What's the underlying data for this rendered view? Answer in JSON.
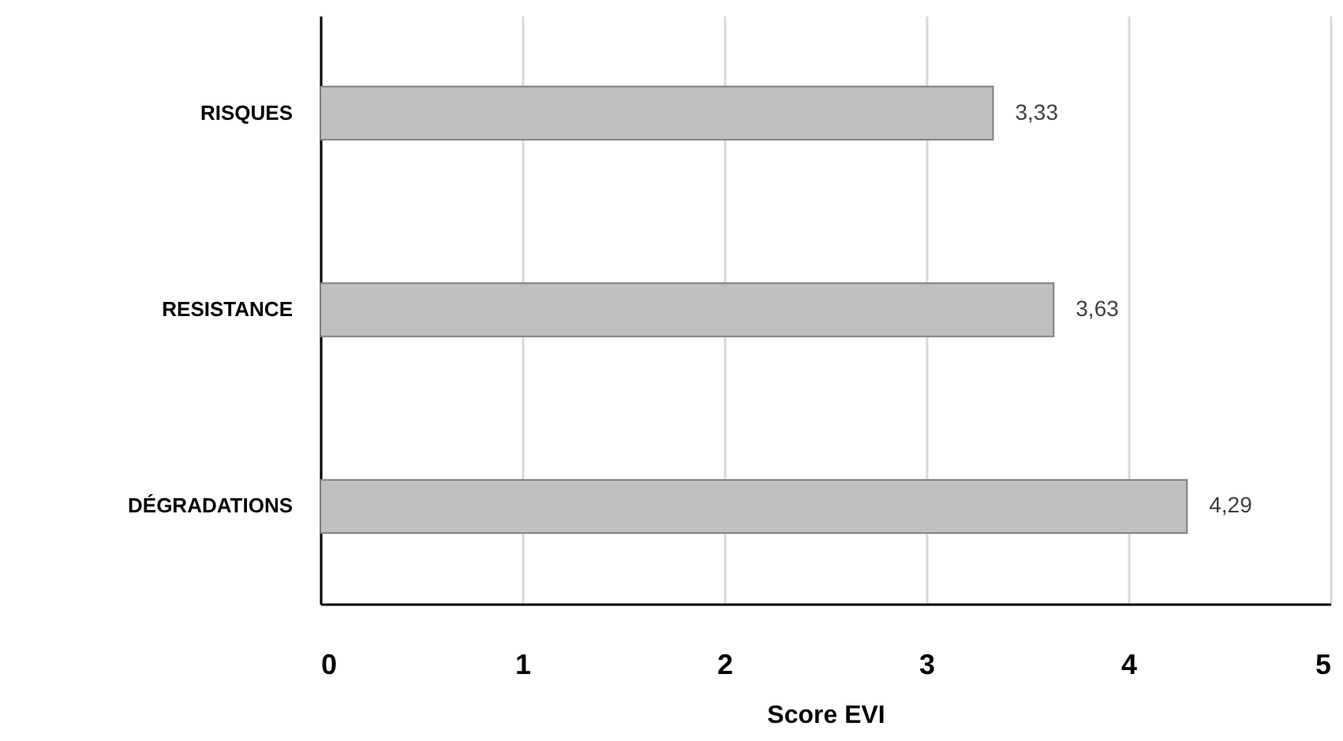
{
  "chart_data": {
    "type": "bar",
    "orientation": "horizontal",
    "xlabel": "Score EVI",
    "categories": [
      "RISQUES",
      "RESISTANCE",
      "DÉGRADATIONS"
    ],
    "values": [
      3.33,
      3.63,
      4.29
    ],
    "value_labels": [
      "3,33",
      "3,63",
      "4,29"
    ],
    "color": "#bfbfbf",
    "xlim": [
      0,
      5
    ],
    "xticks": [
      0,
      1,
      2,
      3,
      4,
      5
    ],
    "grid": "x"
  }
}
